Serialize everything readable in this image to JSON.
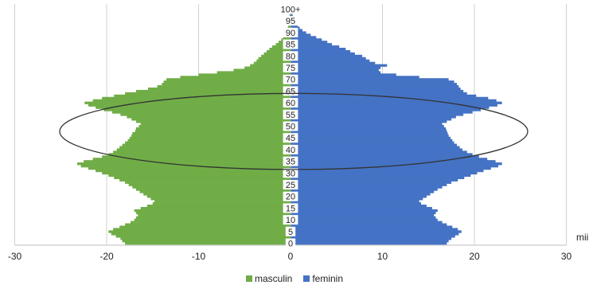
{
  "chart_data": {
    "type": "bar",
    "orientation": "horizontal-population-pyramid",
    "unit": "mii",
    "xlim": [
      -30,
      30
    ],
    "x_ticks": [
      "-30",
      "-20",
      "-10",
      "0",
      "10",
      "20",
      "30"
    ],
    "y_tick_labels": [
      "0",
      "5",
      "10",
      "15",
      "20",
      "25",
      "30",
      "35",
      "40",
      "45",
      "50",
      "55",
      "60",
      "65",
      "70",
      "75",
      "80",
      "85",
      "90",
      "95",
      "100+"
    ],
    "grid": true,
    "legend_position": "bottom",
    "annotation": "ellipse around ages 32-64",
    "series": [
      {
        "name": "masculin",
        "color": "#70AD47",
        "values": [
          18.0,
          18.3,
          18.5,
          19.0,
          19.5,
          19.8,
          19.3,
          18.6,
          18.0,
          17.4,
          17.0,
          16.8,
          16.6,
          16.8,
          17.0,
          16.3,
          15.6,
          15.0,
          14.8,
          15.2,
          15.6,
          16.0,
          16.4,
          16.8,
          17.2,
          17.6,
          18.0,
          18.6,
          19.2,
          19.8,
          20.5,
          21.2,
          22.0,
          22.8,
          23.2,
          22.5,
          21.5,
          20.5,
          19.8,
          19.3,
          18.9,
          18.6,
          18.3,
          18.0,
          17.7,
          17.5,
          17.3,
          17.2,
          16.9,
          16.8,
          16.5,
          16.3,
          16.8,
          17.3,
          17.8,
          18.5,
          19.4,
          20.3,
          21.2,
          22.0,
          22.4,
          21.5,
          20.5,
          19.2,
          18.0,
          16.8,
          15.5,
          14.5,
          14.0,
          13.8,
          13.5,
          12.0,
          10.0,
          8.0,
          6.2,
          5.0,
          4.4,
          4.0,
          3.7,
          3.5,
          3.2,
          2.9,
          2.6,
          2.3,
          2.0,
          1.6,
          1.3,
          1.0,
          0.8,
          0.6,
          0.45,
          0.35,
          0.3,
          0.25,
          0.2,
          0.18,
          0.15,
          0.12,
          0.1,
          0.08,
          0.15
        ]
      },
      {
        "name": "feminin",
        "color": "#4472C4",
        "values": [
          17.0,
          17.2,
          17.5,
          17.9,
          18.3,
          18.6,
          18.2,
          17.6,
          17.0,
          16.5,
          16.0,
          15.8,
          15.6,
          15.8,
          16.0,
          15.4,
          14.8,
          14.2,
          14.0,
          14.4,
          14.8,
          15.2,
          15.6,
          16.0,
          16.5,
          17.0,
          17.5,
          18.2,
          18.9,
          19.6,
          20.3,
          21.0,
          21.8,
          22.6,
          23.0,
          22.3,
          21.4,
          20.5,
          19.8,
          19.2,
          18.7,
          18.4,
          18.1,
          17.8,
          17.6,
          17.4,
          17.2,
          17.1,
          17.0,
          16.9,
          16.7,
          16.5,
          17.0,
          17.5,
          18.0,
          18.8,
          19.8,
          20.7,
          21.6,
          22.5,
          23.0,
          22.4,
          21.5,
          20.2,
          19.2,
          18.8,
          18.5,
          18.3,
          18.1,
          17.8,
          17.2,
          14.0,
          11.5,
          9.8,
          9.6,
          9.8,
          10.5,
          9.2,
          8.6,
          8.2,
          7.8,
          7.0,
          6.5,
          6.0,
          5.3,
          4.5,
          4.0,
          3.4,
          2.8,
          2.2,
          1.7,
          1.3,
          1.0,
          0.8,
          0.6,
          0.45,
          0.35,
          0.25,
          0.2,
          0.15,
          0.3
        ]
      }
    ]
  }
}
